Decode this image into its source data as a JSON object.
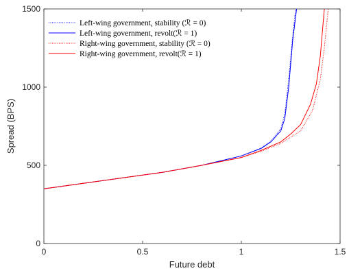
{
  "chart_data": {
    "type": "line",
    "title": "",
    "xlabel": "Future debt",
    "ylabel": "Spread (BPS)",
    "xlim": [
      0,
      1.5
    ],
    "ylim": [
      0,
      1500
    ],
    "xticks": [
      0,
      0.5,
      1,
      1.5
    ],
    "xtick_labels": [
      "0",
      "0.5",
      "1",
      "1.5"
    ],
    "yticks": [
      0,
      500,
      1000,
      1500
    ],
    "ytick_labels": [
      "0",
      "500",
      "1000",
      "1500"
    ],
    "grid": false,
    "legend_placement": "top-left",
    "series": [
      {
        "name": "Left-wing government, stability (ℛ = 0)",
        "color": "#0000ff",
        "style": "dotted",
        "x": [
          0,
          0.2,
          0.4,
          0.6,
          0.8,
          1.0,
          1.1,
          1.15,
          1.2,
          1.22,
          1.24,
          1.26,
          1.275
        ],
        "y": [
          350,
          385,
          420,
          455,
          500,
          560,
          610,
          655,
          735,
          830,
          1050,
          1330,
          1500
        ]
      },
      {
        "name": "Left-wing government, revolt(ℛ = 1)",
        "color": "#0000ff",
        "style": "solid",
        "x": [
          0,
          0.2,
          0.4,
          0.6,
          0.8,
          1.0,
          1.1,
          1.15,
          1.2,
          1.22,
          1.24,
          1.26,
          1.28
        ],
        "y": [
          350,
          385,
          420,
          455,
          500,
          560,
          608,
          650,
          720,
          800,
          1000,
          1300,
          1500
        ]
      },
      {
        "name": "Right-wing government, stability (ℛ = 0)",
        "color": "#ff0000",
        "style": "dotted",
        "x": [
          0,
          0.2,
          0.4,
          0.6,
          0.8,
          1.0,
          1.1,
          1.2,
          1.3,
          1.36,
          1.4,
          1.42,
          1.44
        ],
        "y": [
          350,
          385,
          420,
          455,
          500,
          550,
          590,
          640,
          720,
          850,
          1050,
          1250,
          1500
        ]
      },
      {
        "name": "Right-wing government, revolt(ℛ = 1)",
        "color": "#ff0000",
        "style": "solid",
        "x": [
          0,
          0.2,
          0.4,
          0.6,
          0.8,
          1.0,
          1.1,
          1.2,
          1.25,
          1.3,
          1.35,
          1.38,
          1.4,
          1.42
        ],
        "y": [
          350,
          385,
          420,
          455,
          500,
          550,
          595,
          650,
          700,
          760,
          890,
          1020,
          1200,
          1500
        ]
      }
    ]
  }
}
